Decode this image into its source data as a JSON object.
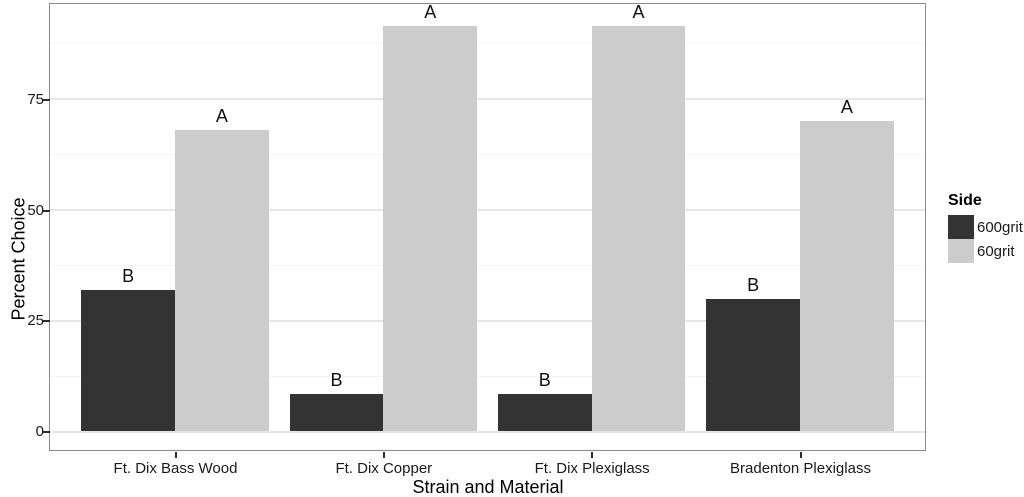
{
  "chart_data": {
    "type": "bar",
    "title": "",
    "xlabel": "Strain and Material",
    "ylabel": "Percent Choice",
    "categories": [
      "Ft. Dix Bass Wood",
      "Ft. Dix Copper",
      "Ft. Dix Plexiglass",
      "Bradenton Plexiglass"
    ],
    "series": [
      {
        "name": "600grit",
        "color": "#333333",
        "values": [
          32,
          8.5,
          8.5,
          30
        ],
        "bar_labels": [
          "B",
          "B",
          "B",
          "B"
        ]
      },
      {
        "name": "60grit",
        "color": "#cccccc",
        "values": [
          68,
          91.5,
          91.5,
          70
        ],
        "bar_labels": [
          "A",
          "A",
          "A",
          "A"
        ]
      }
    ],
    "yticks_major": [
      0,
      25,
      50,
      75
    ],
    "yticks_minor": [
      12.5,
      37.5,
      62.5,
      87.5
    ],
    "ylim": [
      0,
      96
    ],
    "grid": true,
    "legend": {
      "title": "Side",
      "position": "right"
    }
  }
}
